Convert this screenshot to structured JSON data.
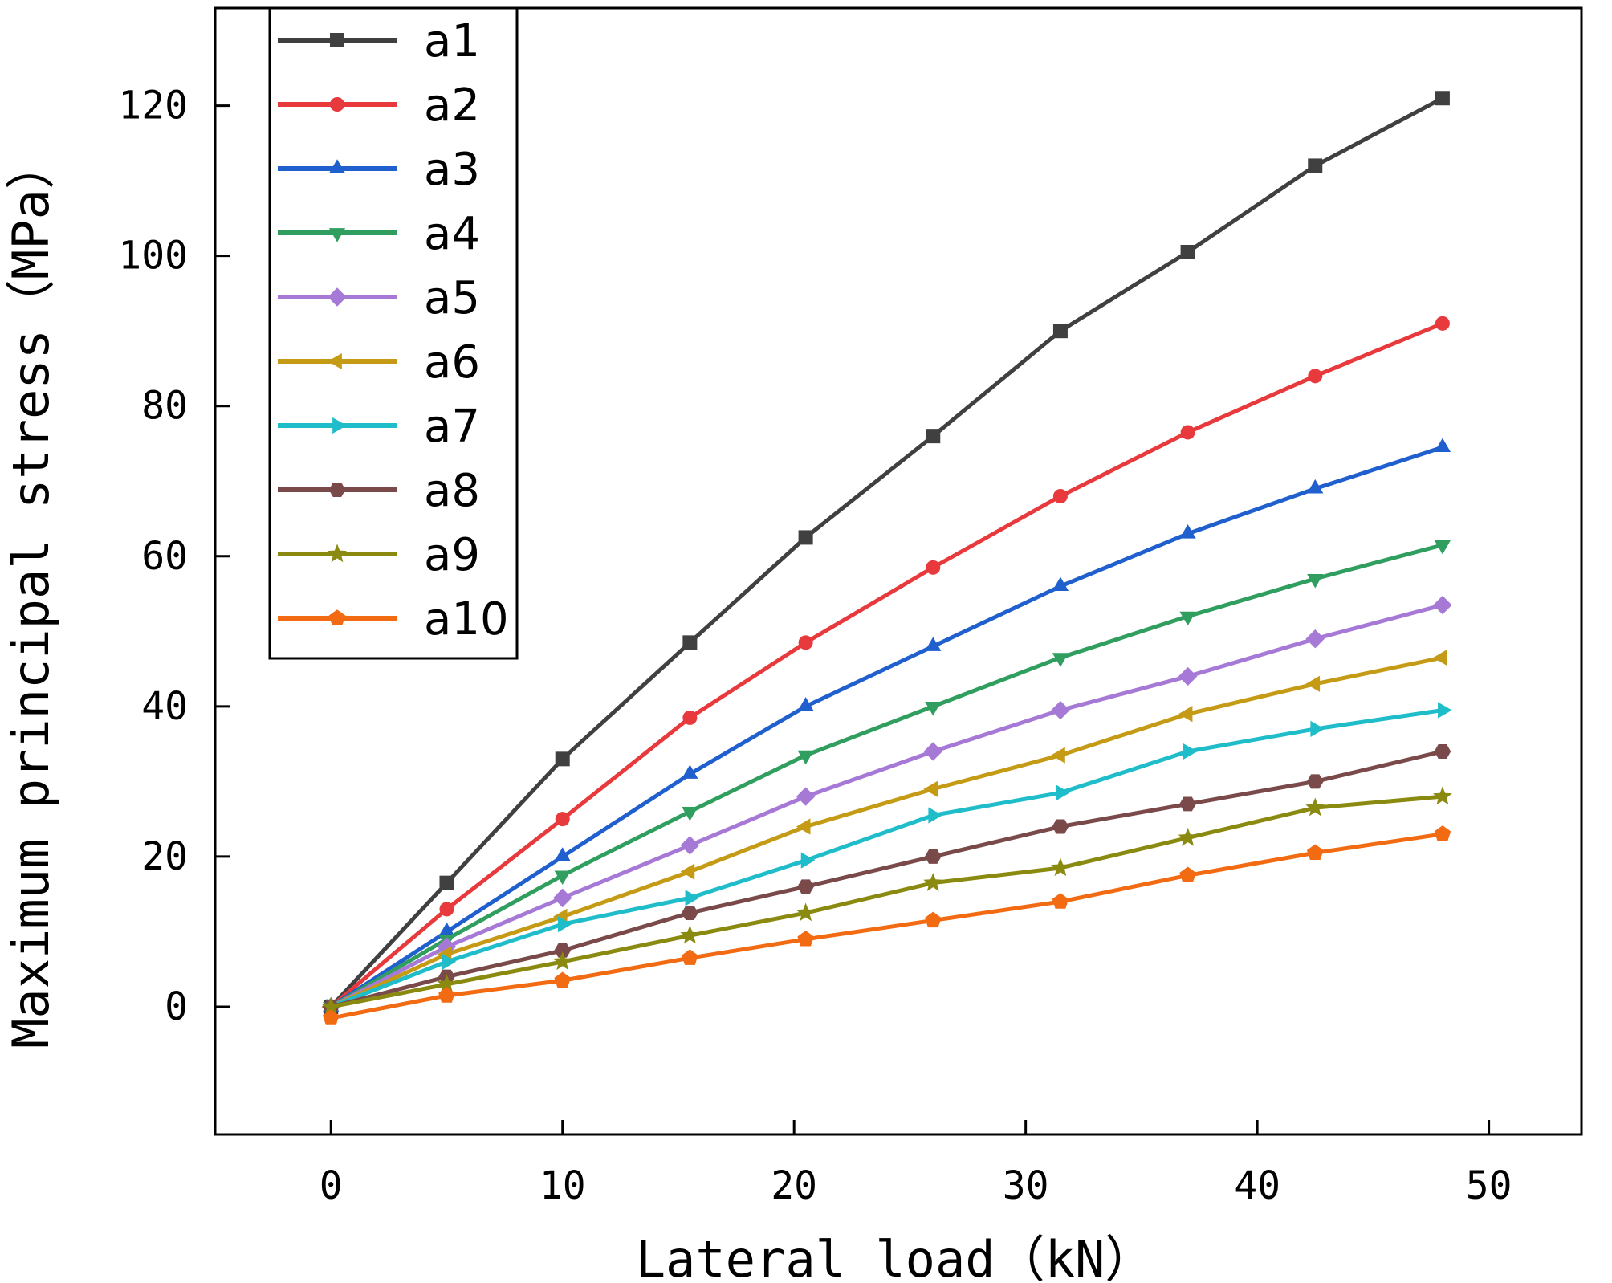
{
  "chart_data": {
    "type": "line",
    "xlabel": "Lateral load（kN）",
    "ylabel": "Maximum principal stress（MPa）",
    "xlim": [
      -5,
      54
    ],
    "ylim": [
      -17,
      133
    ],
    "xticks": [
      0,
      10,
      20,
      30,
      40,
      50
    ],
    "yticks": [
      0,
      20,
      40,
      60,
      80,
      100,
      120
    ],
    "grid": false,
    "legend_position": "top-left",
    "x": [
      0,
      5,
      10,
      15.5,
      20.5,
      26,
      31.5,
      37,
      42.5,
      48
    ],
    "series": [
      {
        "name": "a1",
        "color": "#404040",
        "marker": "square",
        "values": [
          0,
          16.5,
          33,
          48.5,
          62.5,
          76,
          90,
          100.5,
          112,
          121
        ]
      },
      {
        "name": "a2",
        "color": "#e8393c",
        "marker": "circle",
        "values": [
          0,
          13,
          25,
          38.5,
          48.5,
          58.5,
          68,
          76.5,
          84,
          91
        ]
      },
      {
        "name": "a3",
        "color": "#1f5fce",
        "marker": "triangle-up",
        "values": [
          0,
          10,
          20,
          31,
          40,
          48,
          56,
          63,
          69,
          74.5
        ]
      },
      {
        "name": "a4",
        "color": "#2f9e5e",
        "marker": "triangle-down",
        "values": [
          0,
          9,
          17.5,
          26,
          33.5,
          40,
          46.5,
          52,
          57,
          61.5
        ]
      },
      {
        "name": "a5",
        "color": "#a679d6",
        "marker": "diamond",
        "values": [
          0,
          8,
          14.5,
          21.5,
          28,
          34,
          39.5,
          44,
          49,
          53.5
        ]
      },
      {
        "name": "a6",
        "color": "#c59a14",
        "marker": "triangle-left",
        "values": [
          0,
          7,
          12,
          18,
          24,
          29,
          33.5,
          39,
          43,
          46.5
        ]
      },
      {
        "name": "a7",
        "color": "#1fbcc9",
        "marker": "triangle-right",
        "values": [
          0,
          6,
          11,
          14.5,
          19.5,
          25.5,
          28.5,
          34,
          37,
          39.5
        ]
      },
      {
        "name": "a8",
        "color": "#7a4a4a",
        "marker": "hexagon",
        "values": [
          0,
          4,
          7.5,
          12.5,
          16,
          20,
          24,
          27,
          30,
          34
        ]
      },
      {
        "name": "a9",
        "color": "#8a8a10",
        "marker": "star",
        "values": [
          0,
          3,
          6,
          9.5,
          12.5,
          16.5,
          18.5,
          22.5,
          26.5,
          28
        ]
      },
      {
        "name": "a10",
        "color": "#f26a12",
        "marker": "pentagon",
        "values": [
          -1.5,
          1.5,
          3.5,
          6.5,
          9,
          11.5,
          14,
          17.5,
          20.5,
          23
        ]
      }
    ]
  }
}
